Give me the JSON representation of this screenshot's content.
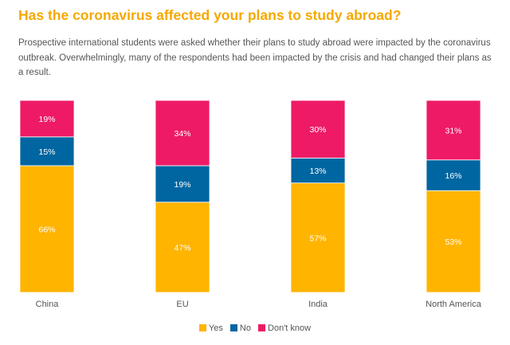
{
  "title": "Has the coronavirus affected your plans to study abroad?",
  "subtitle": "Prospective international students were asked whether their plans to study abroad were impacted by the coronavirus outbreak. Overwhelmingly, many of the respondents had been impacted by the crisis and had changed their plans as a result.",
  "colors": {
    "yes": "#ffb400",
    "no": "#0066a1",
    "dont_know": "#ee1a66",
    "title": "#f5a800"
  },
  "chart_data": {
    "type": "bar",
    "stacked": true,
    "normalized": true,
    "categories": [
      "China",
      "EU",
      "India",
      "North America"
    ],
    "series": [
      {
        "name": "Yes",
        "values": [
          66,
          47,
          57,
          53
        ],
        "labels": [
          "66%",
          "47%",
          "57%",
          "53%"
        ],
        "color": "#ffb400"
      },
      {
        "name": "No",
        "values": [
          15,
          19,
          13,
          16
        ],
        "labels": [
          "15%",
          "19%",
          "13%",
          "16%"
        ],
        "color": "#0066a1"
      },
      {
        "name": "Don't know",
        "values": [
          19,
          34,
          30,
          31
        ],
        "labels": [
          "19%",
          "34%",
          "30%",
          "31%"
        ],
        "color": "#ee1a66"
      }
    ],
    "ylim": [
      0,
      100
    ],
    "grid": false,
    "legend": "bottom"
  },
  "legend": {
    "yes": "Yes",
    "no": "No",
    "dont_know": "Don't know"
  }
}
